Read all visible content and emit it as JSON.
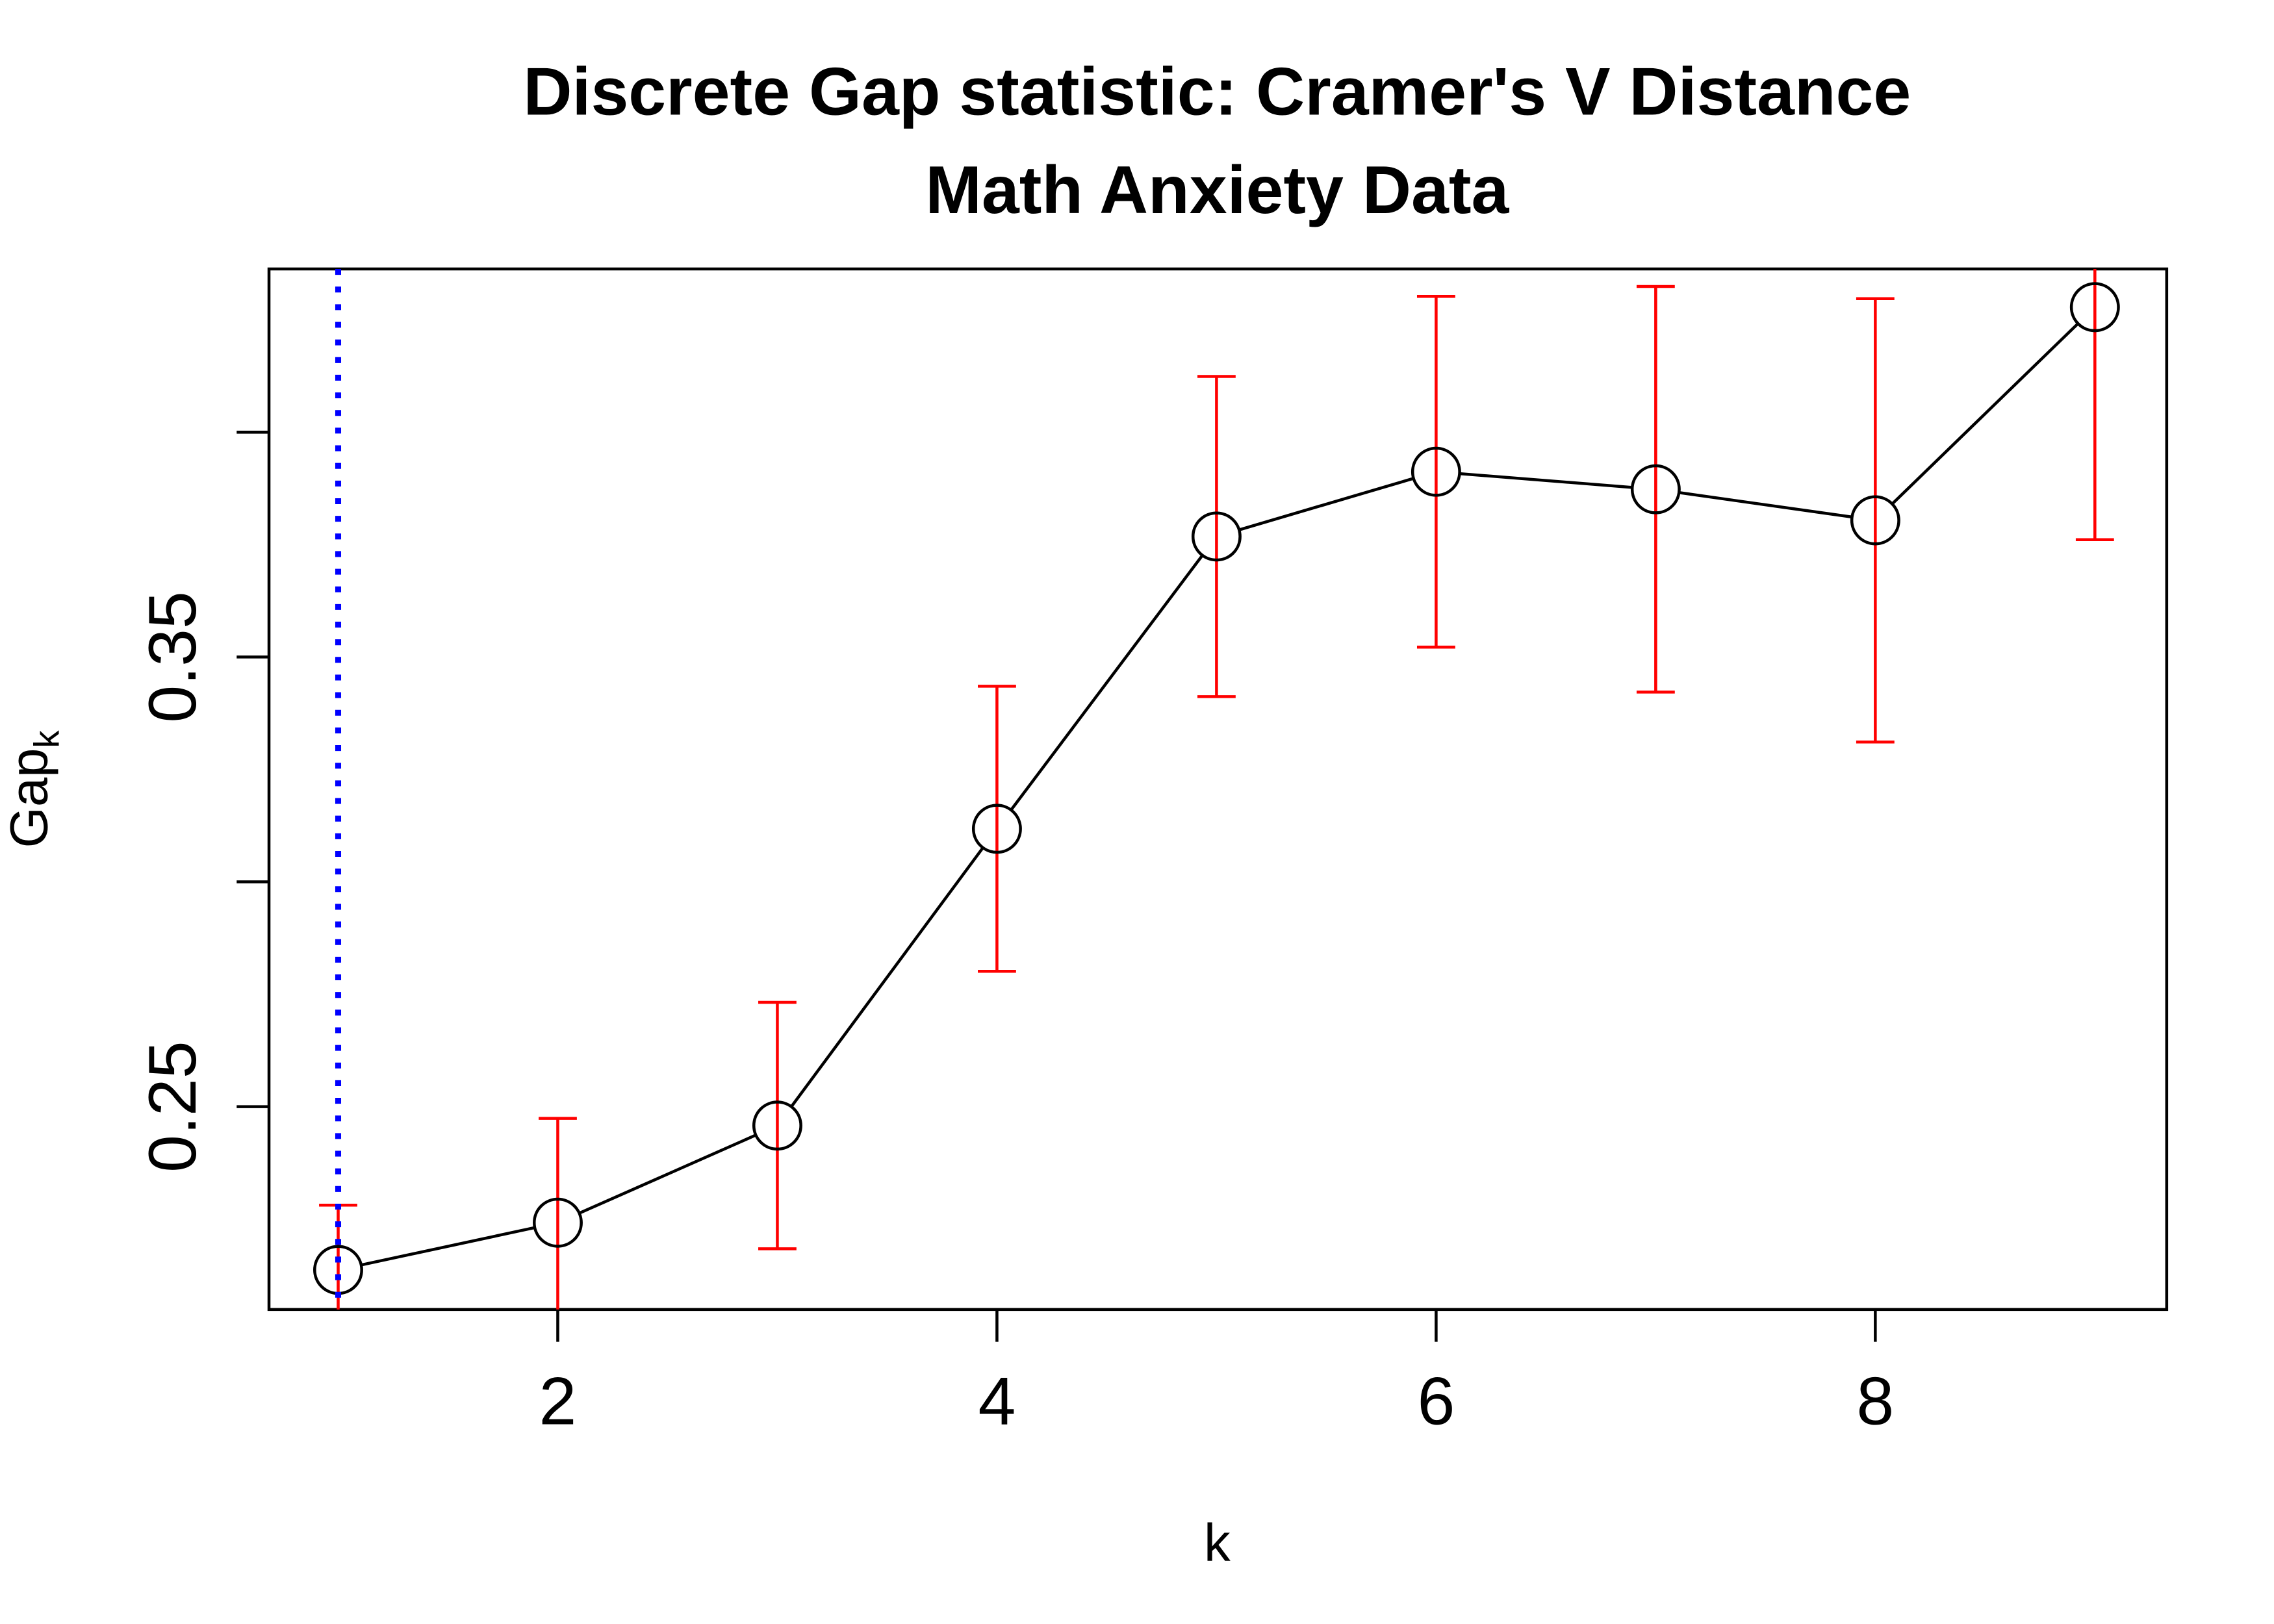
{
  "chart_data": {
    "type": "line_errorbar",
    "title": "Discrete Gap statistic: Cramer's V Distance",
    "subtitle": "Math Anxiety Data",
    "x_label": "k",
    "y_label": {
      "text": "Gap",
      "subscript": "k"
    },
    "x": [
      1,
      2,
      3,
      4,
      5,
      6,
      7,
      8,
      9
    ],
    "values": [
      0.2137,
      0.2242,
      0.2458,
      0.3118,
      0.3768,
      0.3912,
      0.3873,
      0.3804,
      0.4278
    ],
    "errors": [
      0.0144,
      0.0232,
      0.0274,
      0.0317,
      0.0356,
      0.039,
      0.0451,
      0.0493,
      0.0517
    ],
    "color": "#000000",
    "error_color": "#ff0000",
    "selected_k": 1,
    "selected_color": "#0000ff",
    "xlim": [
      0.685,
      9.327
    ],
    "xticks": [
      2,
      4,
      6,
      8
    ],
    "ylim": [
      0.2049,
      0.4363
    ],
    "yticks": [
      0.25,
      {
        "value": 0.3,
        "label": null
      },
      0.35,
      {
        "value": 0.4,
        "label": null
      }
    ],
    "grid": false
  }
}
